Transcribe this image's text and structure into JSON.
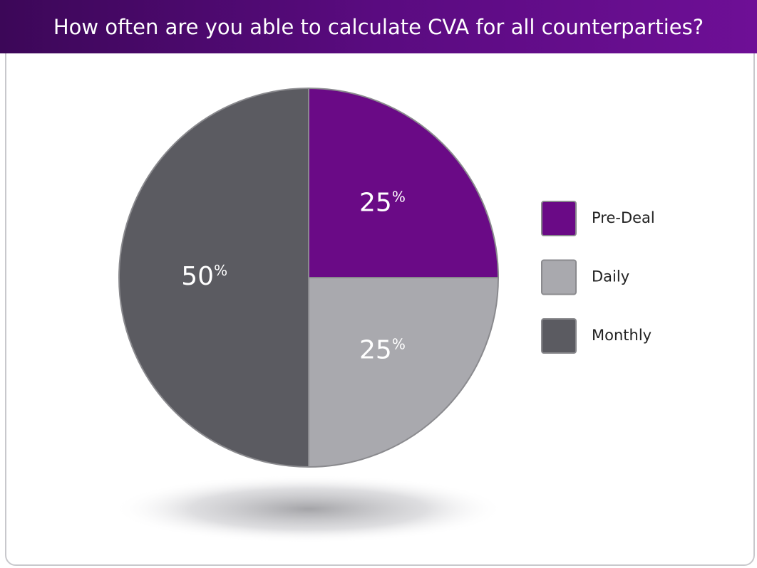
{
  "chart_data": {
    "type": "pie",
    "title": "How often are you able to calculate CVA for all counterparties?",
    "categories": [
      "Pre-Deal",
      "Daily",
      "Monthly"
    ],
    "values": [
      25,
      25,
      50
    ],
    "value_labels": [
      "25%",
      "25%",
      "50%"
    ],
    "colors": [
      "#6a0a86",
      "#a9a9ae",
      "#5b5b61"
    ],
    "legend": "right"
  }
}
